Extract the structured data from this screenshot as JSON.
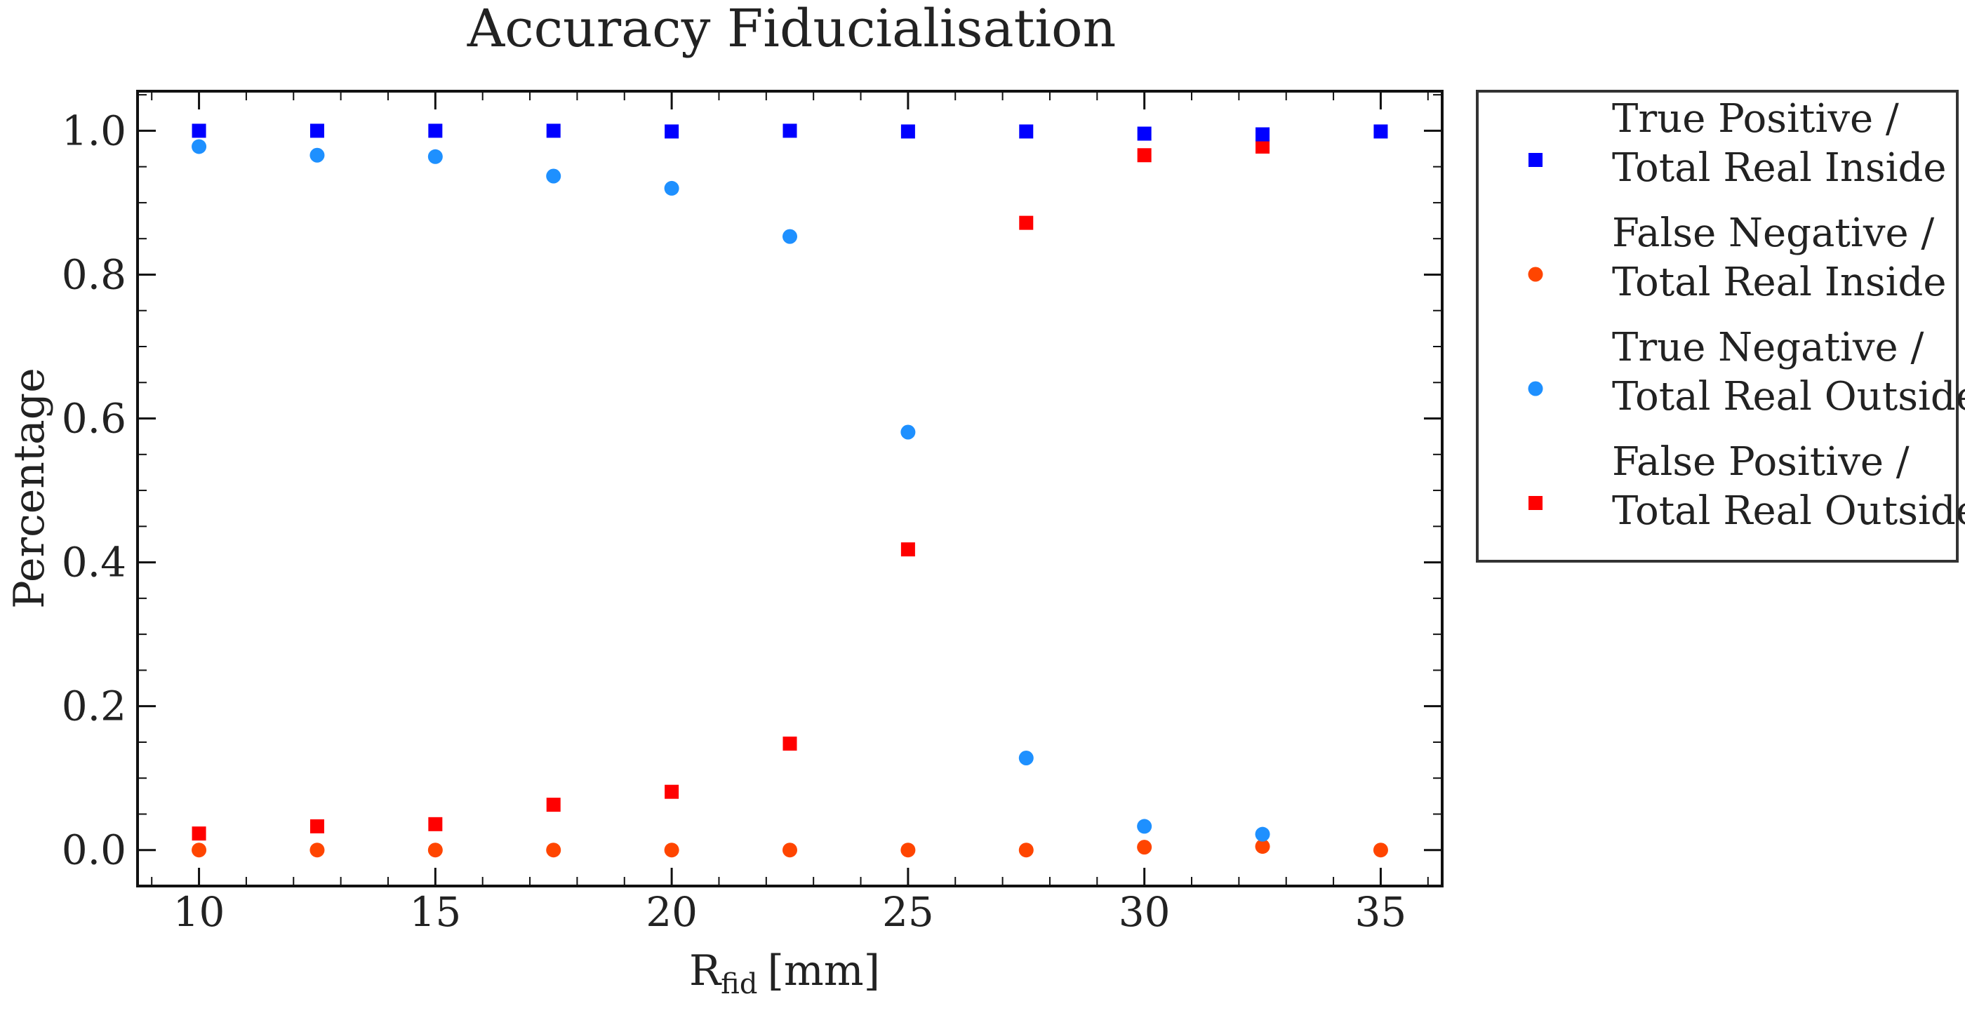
{
  "chart_data": {
    "type": "scatter",
    "title": "Accuracy Fiducialisation",
    "xlabel_main": "R",
    "xlabel_sub": "fid",
    "xlabel_unit": "[mm]",
    "ylabel": "Percentage",
    "xlim": [
      8.7,
      36.3
    ],
    "ylim": [
      -0.05,
      1.055
    ],
    "x_ticks": [
      10,
      15,
      20,
      25,
      30,
      35
    ],
    "x_tick_labels": [
      "10",
      "15",
      "20",
      "25",
      "30",
      "35"
    ],
    "y_ticks": [
      0.0,
      0.2,
      0.4,
      0.6,
      0.8,
      1.0
    ],
    "y_tick_labels": [
      "0.0",
      "0.2",
      "0.4",
      "0.6",
      "0.8",
      "1.0"
    ],
    "x": [
      10,
      12.5,
      15,
      17.5,
      20,
      22.5,
      25,
      27.5,
      30,
      32.5,
      35
    ],
    "grid": false,
    "legend_position": "outside-right-top",
    "series": [
      {
        "name": "True Positive / Total Real Inside",
        "legend_lines": [
          "True Positive /",
          "Total Real Inside"
        ],
        "marker": "square",
        "color": "#0000ff",
        "values": [
          1.0,
          1.0,
          1.0,
          1.0,
          0.999,
          1.0,
          0.999,
          0.999,
          0.996,
          0.995,
          0.999
        ]
      },
      {
        "name": "False Negative / Total Real Inside",
        "legend_lines": [
          "False Negative /",
          "Total Real Inside"
        ],
        "marker": "circle",
        "color": "#ff4500",
        "values": [
          0.0,
          0.0,
          0.0,
          0.0,
          0.0,
          0.0,
          0.0,
          0.0,
          0.004,
          0.005,
          0.0
        ]
      },
      {
        "name": "True Negative / Total Real Outside",
        "legend_lines": [
          "True Negative /",
          "Total Real Outside"
        ],
        "marker": "circle",
        "color": "#1e90ff",
        "values": [
          0.978,
          0.966,
          0.964,
          0.937,
          0.92,
          0.853,
          0.581,
          0.128,
          0.033,
          0.022,
          null
        ]
      },
      {
        "name": "False Positive / Total Real Outside",
        "legend_lines": [
          "False Positive /",
          "Total Real Outside"
        ],
        "marker": "square",
        "color": "#ff0000",
        "values": [
          0.023,
          0.033,
          0.036,
          0.063,
          0.081,
          0.148,
          0.418,
          0.872,
          0.966,
          0.978,
          null
        ]
      }
    ]
  }
}
